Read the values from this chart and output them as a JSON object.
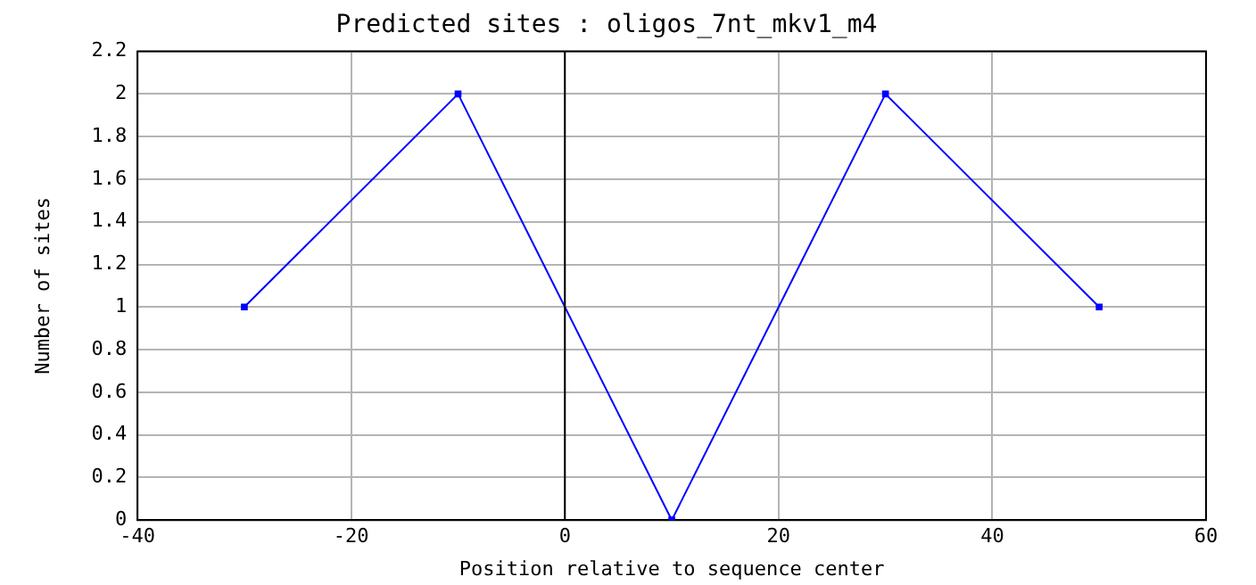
{
  "chart_data": {
    "type": "line",
    "title": "Predicted sites : oligos_7nt_mkv1_m4",
    "xlabel": "Position relative to sequence center",
    "ylabel": "Number of sites",
    "x": [
      -30,
      -10,
      10,
      30,
      50
    ],
    "series": [
      {
        "color": "#0000ff",
        "values": [
          1,
          2,
          0,
          2,
          1
        ]
      }
    ],
    "xlim": [
      -40,
      60
    ],
    "xticks": [
      -40,
      -20,
      0,
      20,
      40,
      60
    ],
    "ylim": [
      0,
      2.2
    ],
    "yticks": [
      0,
      0.2,
      0.4,
      0.6,
      0.8,
      1,
      1.2,
      1.4,
      1.6,
      1.8,
      2,
      2.2
    ],
    "ref_lines": [
      {
        "axis": "x",
        "value": 0,
        "color": "#000000"
      }
    ],
    "grid": true,
    "marker": "square",
    "line_style": "solid",
    "legend": false
  }
}
